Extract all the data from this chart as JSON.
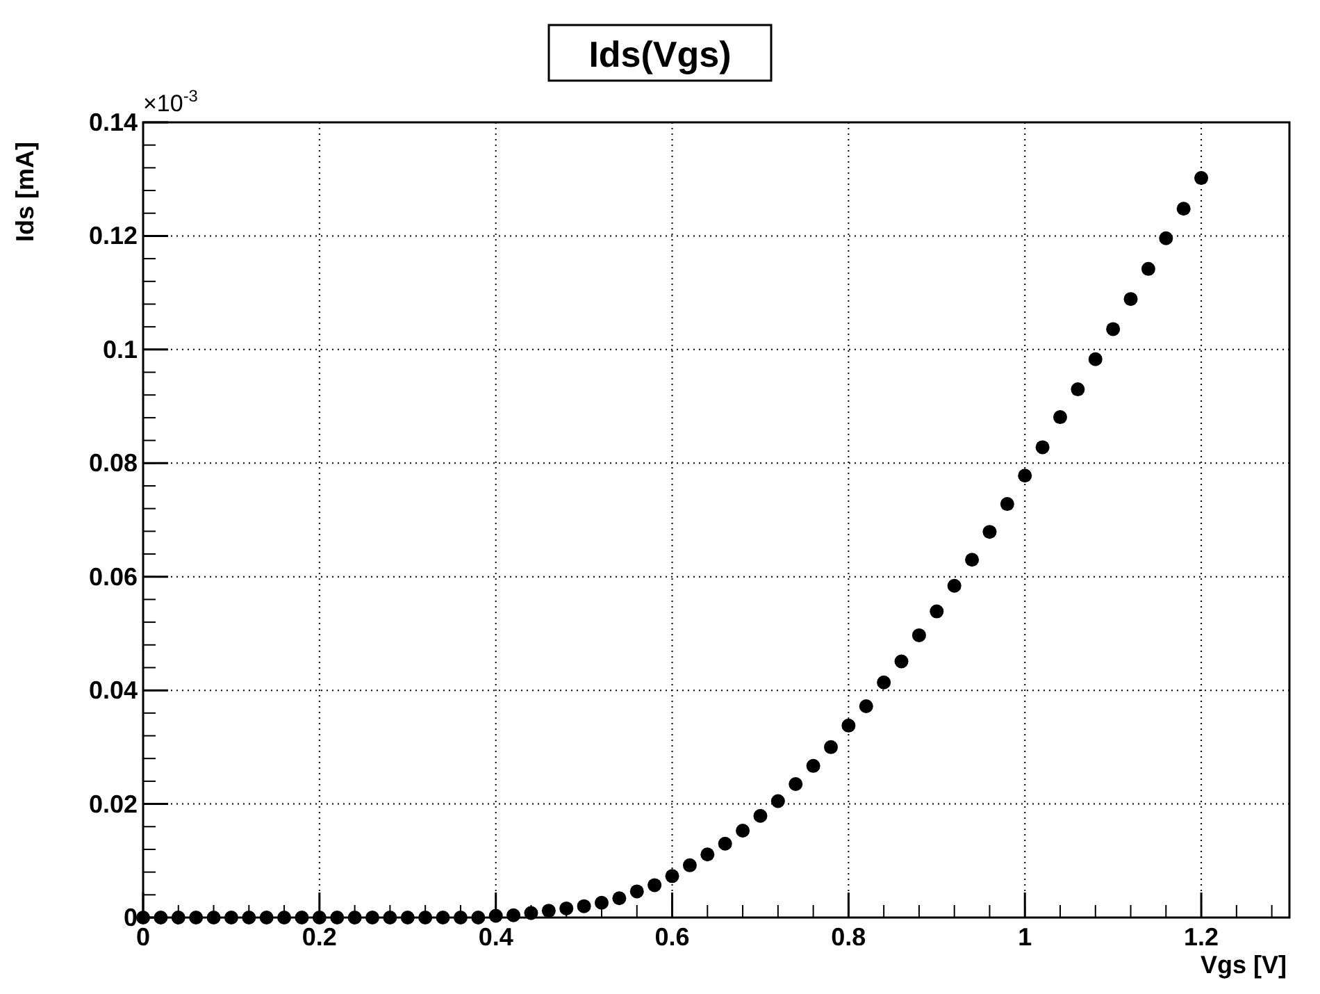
{
  "chart_data": {
    "type": "scatter",
    "title": "Ids(Vgs)",
    "xlabel": "Vgs  [V]",
    "ylabel": "Ids  [mA]",
    "annotations": [
      "×10$^{-3}$"
    ],
    "x": [
      0,
      0.02,
      0.04,
      0.06,
      0.08,
      0.1,
      0.12,
      0.14,
      0.16,
      0.18,
      0.2,
      0.22,
      0.24,
      0.26,
      0.28,
      0.3,
      0.32,
      0.34,
      0.36,
      0.38,
      0.4,
      0.42,
      0.44,
      0.46,
      0.48,
      0.5,
      0.52,
      0.54,
      0.56,
      0.58,
      0.6,
      0.62,
      0.64,
      0.66,
      0.68,
      0.7,
      0.72,
      0.74,
      0.76,
      0.78,
      0.8,
      0.82,
      0.84,
      0.86,
      0.88,
      0.9,
      0.92,
      0.94,
      0.96,
      0.98,
      1,
      1.02,
      1.04,
      1.06,
      1.08,
      1.1,
      1.12,
      1.14,
      1.16,
      1.18,
      1.2
    ],
    "series": [
      {
        "color": "#000000",
        "values": [
          0,
          0,
          0,
          0,
          0,
          0,
          0,
          0,
          0,
          0,
          0,
          0,
          0,
          0,
          0,
          0,
          0,
          0,
          0,
          0,
          0.0003,
          0.0004,
          0.0008,
          0.0012,
          0.0016,
          0.002,
          0.0026,
          0.0034,
          0.0046,
          0.0057,
          0.0073,
          0.0092,
          0.0111,
          0.013,
          0.0153,
          0.0179,
          0.0205,
          0.0235,
          0.0267,
          0.03,
          0.0338,
          0.0372,
          0.0414,
          0.0451,
          0.0497,
          0.0539,
          0.0584,
          0.063,
          0.0679,
          0.0728,
          0.0778,
          0.0828,
          0.0881,
          0.093,
          0.0983,
          0.1036,
          0.1089,
          0.1142,
          0.1196,
          0.1248,
          0.1302
        ]
      }
    ],
    "xlim": [
      0,
      1.3
    ],
    "ylim": [
      0,
      0.14
    ],
    "xticks": [
      0,
      0.2,
      0.4,
      0.6,
      0.8,
      1,
      1.2
    ],
    "yticks": [
      0,
      0.02,
      0.04,
      0.06,
      0.08,
      0.1,
      0.12,
      0.14
    ],
    "grid": true,
    "marker": "circle"
  }
}
